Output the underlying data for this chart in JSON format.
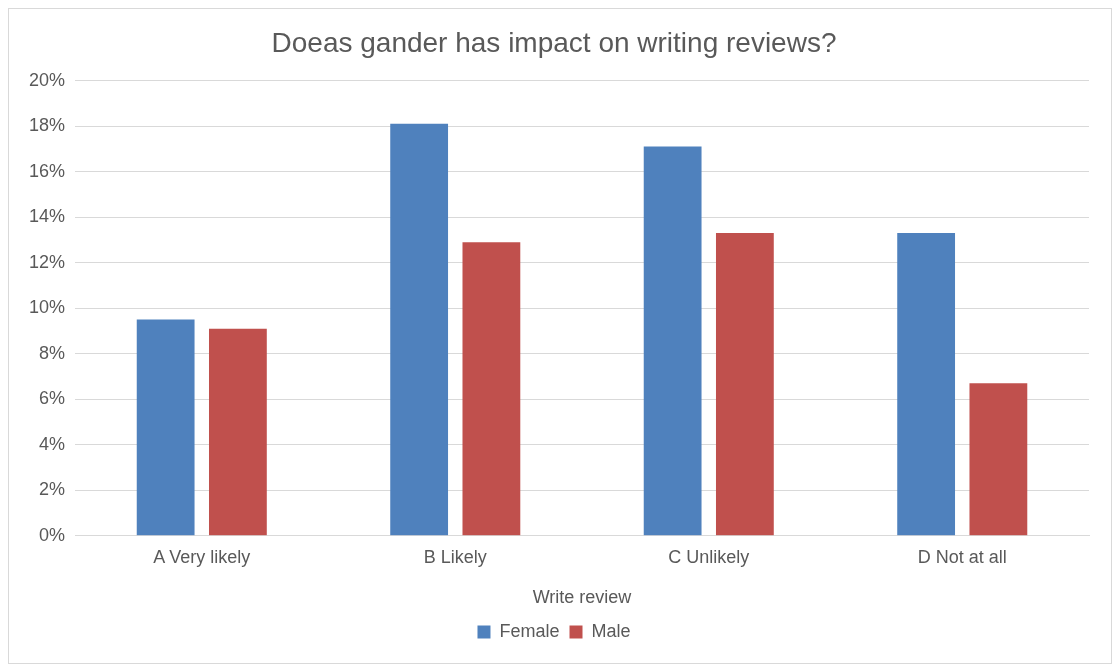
{
  "chart_data": {
    "type": "bar",
    "title": "Doeas gander has impact on writing reviews?",
    "xlabel": "Write review",
    "categories": [
      "A Very likely",
      "B Likely",
      "C Unlikely",
      "D Not at all"
    ],
    "series": [
      {
        "name": "Female",
        "color": "#4f81bd",
        "values": [
          9.5,
          18.1,
          17.1,
          13.3
        ]
      },
      {
        "name": "Male",
        "color": "#c0504d",
        "values": [
          9.1,
          12.9,
          13.3,
          6.7
        ]
      }
    ],
    "ylim": [
      0,
      20
    ],
    "yticks": [
      {
        "value": 0,
        "label": "0%"
      },
      {
        "value": 2,
        "label": "2%"
      },
      {
        "value": 4,
        "label": "4%"
      },
      {
        "value": 6,
        "label": "6%"
      },
      {
        "value": 8,
        "label": "8%"
      },
      {
        "value": 10,
        "label": "10%"
      },
      {
        "value": 12,
        "label": "12%"
      },
      {
        "value": 14,
        "label": "14%"
      },
      {
        "value": 16,
        "label": "16%"
      },
      {
        "value": 18,
        "label": "18%"
      },
      {
        "value": 20,
        "label": "20%"
      }
    ],
    "grid": "y",
    "legend": "bottom"
  }
}
